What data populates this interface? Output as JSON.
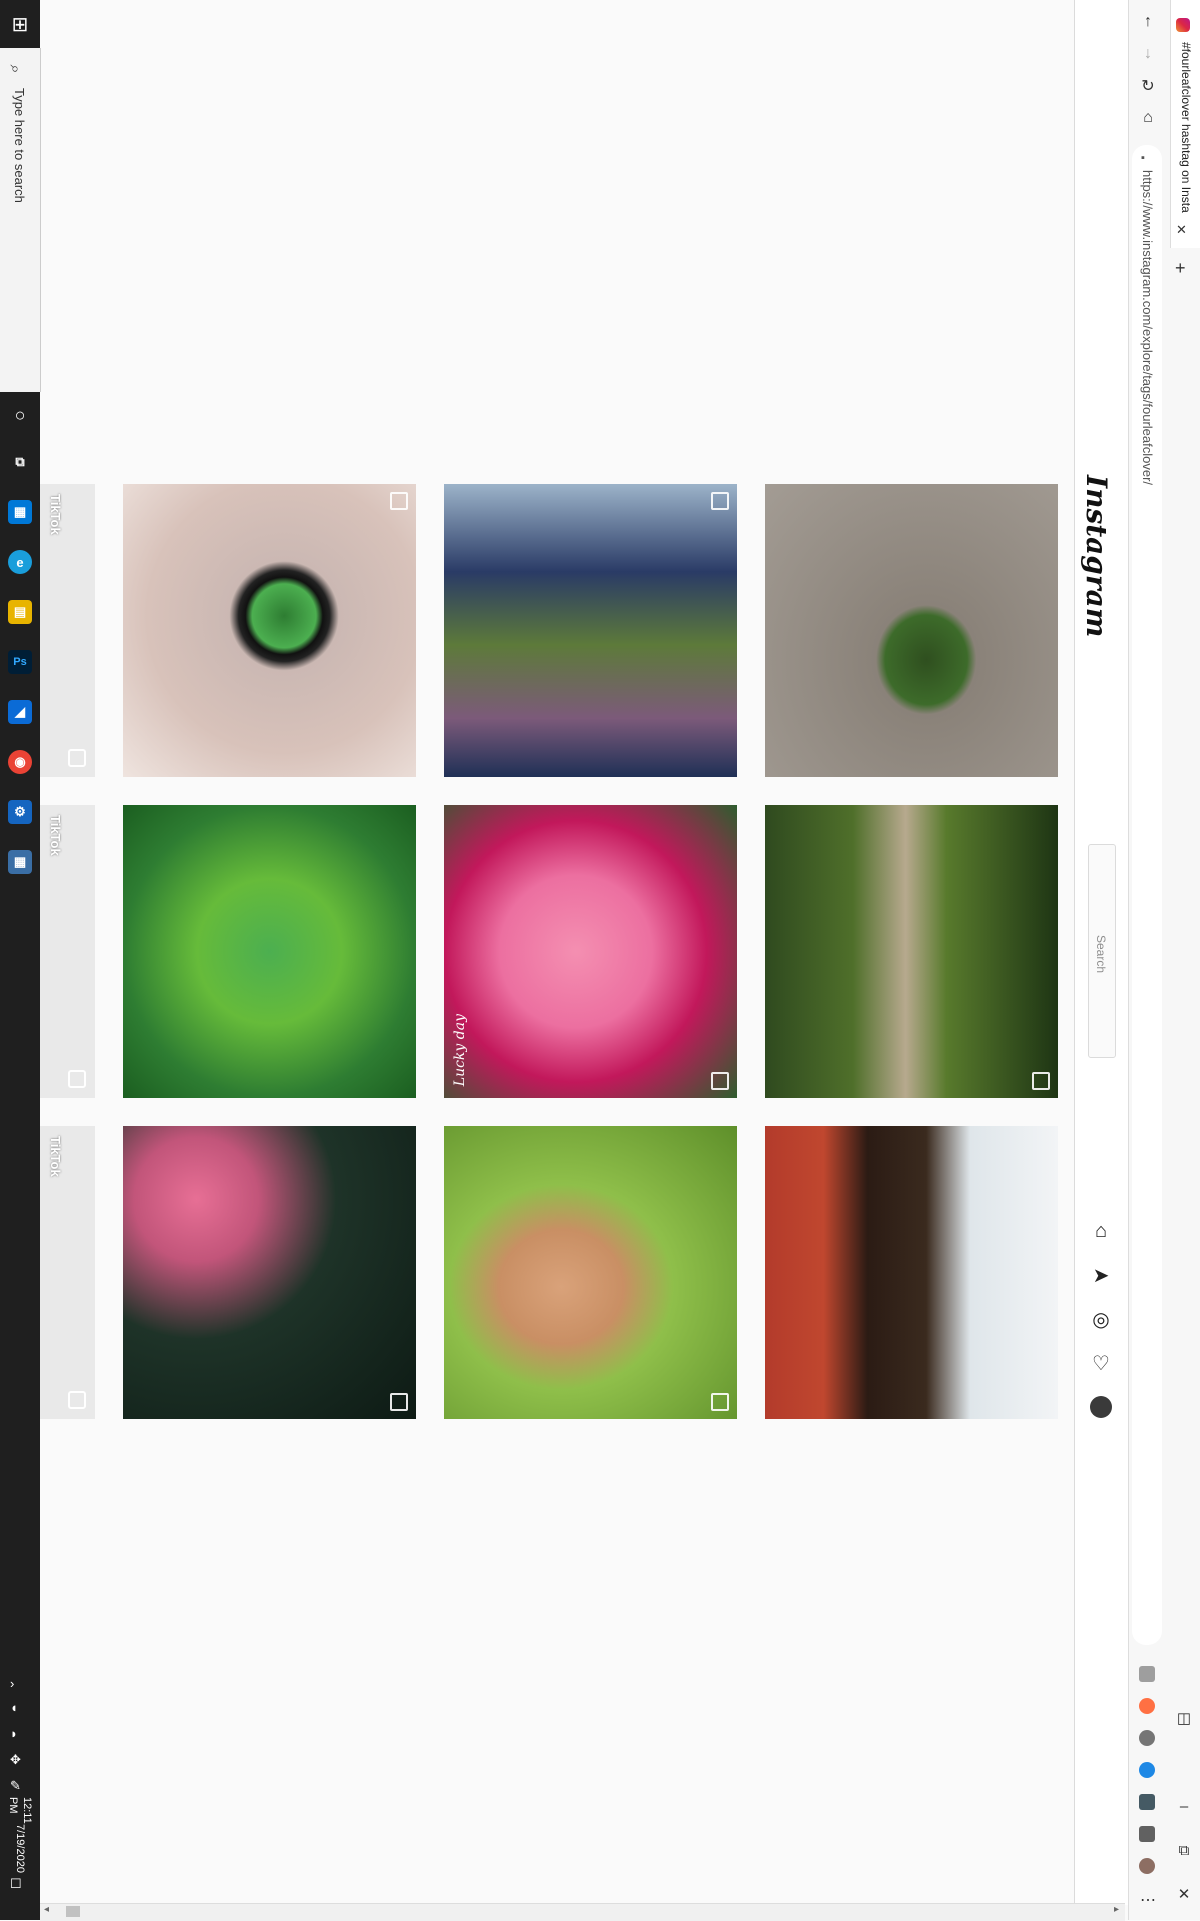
{
  "taskbar": {
    "start_icon": "windows-icon",
    "search_placeholder": "Type here to search",
    "apps": [
      {
        "name": "cortana",
        "glyph": "○",
        "color": "#1f1f1f"
      },
      {
        "name": "task-view",
        "glyph": "⧉",
        "color": "#1f1f1f"
      },
      {
        "name": "store",
        "glyph": "▦",
        "color": "#0078d7"
      },
      {
        "name": "edge",
        "glyph": "e",
        "color": "#1a9edb"
      },
      {
        "name": "file-explorer",
        "glyph": "▤",
        "color": "#e8b400"
      },
      {
        "name": "photoshop",
        "glyph": "Ps",
        "color": "#001e36"
      },
      {
        "name": "azure-data",
        "glyph": "◢",
        "color": "#0b6bd6"
      },
      {
        "name": "chrome",
        "glyph": "◉",
        "color": "#2e7d32"
      },
      {
        "name": "settings",
        "glyph": "⚙",
        "color": "#1565c0"
      },
      {
        "name": "calculator",
        "glyph": "▦",
        "color": "#3a6ea5"
      }
    ],
    "time": "12:11 PM",
    "date": "7/19/2020"
  },
  "browser": {
    "tab_title": "#fourleafclover hashtag on Insta",
    "url": "https://www.instagram.com/explore/tags/fourleafclover/",
    "new_tab_glyph": "+",
    "close_glyph": "✕"
  },
  "instagram": {
    "logo": "Instagram",
    "search_placeholder": "Search",
    "nav_icons": [
      "home-icon",
      "direct-icon",
      "explore-icon",
      "activity-icon",
      "profile-avatar"
    ]
  },
  "grid": {
    "partial_label": "TikTok",
    "rows": [
      [
        {
          "name": "clover-pendant",
          "multi": true,
          "caption": ""
        },
        {
          "name": "friends-group",
          "multi": true,
          "caption": ""
        },
        {
          "name": "hand-clover",
          "multi": false,
          "caption": ""
        }
      ],
      [
        {
          "name": "clover-leaf-closeup",
          "multi": false,
          "caption": ""
        },
        {
          "name": "pink-hydrangea",
          "multi": true,
          "caption": "Lucky day"
        },
        {
          "name": "forest-path",
          "multi": true,
          "caption": ""
        }
      ],
      [
        {
          "name": "dark-clover-patch",
          "multi": true,
          "caption": ""
        },
        {
          "name": "hand-in-grass",
          "multi": true,
          "caption": ""
        },
        {
          "name": "potted-oxalis",
          "multi": false,
          "caption": ""
        }
      ]
    ]
  }
}
